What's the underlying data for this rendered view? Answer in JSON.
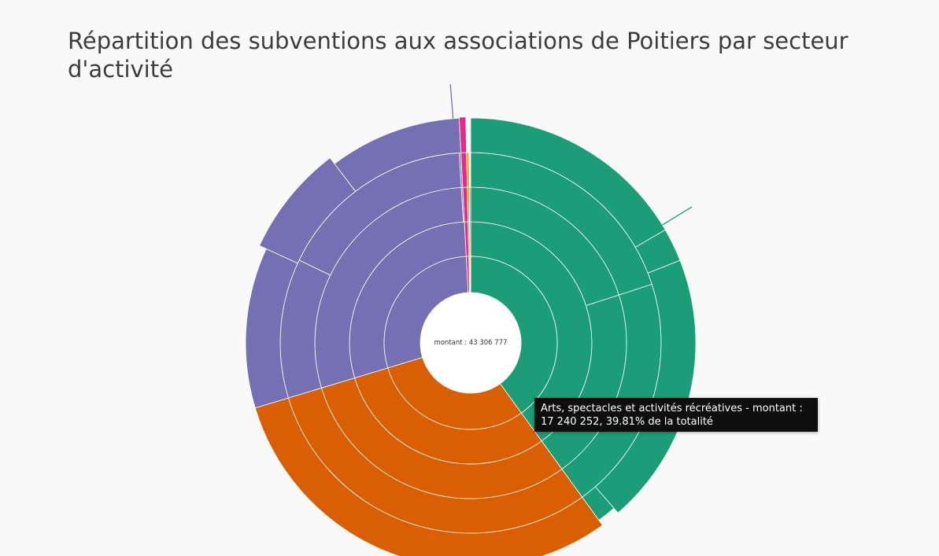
{
  "title": "Répartition des subventions aux associations de Poitiers par secteur d'activité",
  "chart_data": {
    "type": "sunburst",
    "center_label": "montant : 43 306 777",
    "total": 43306777,
    "depth_levels": 5,
    "colors": {
      "arts": "#1b9e77",
      "orange": "#d95f02",
      "purple": "#7570b3",
      "pink": "#e7298a",
      "yellow": "#e6ab02",
      "olive": "#66a61e"
    },
    "sectors": [
      {
        "key": "arts",
        "name": "Arts, spectacles et activités récréatives",
        "value": 17240252,
        "color": "arts",
        "tail": true,
        "levels": [
          [
            1
          ],
          [
            0.5,
            0.5
          ],
          [
            0.5,
            0.5
          ],
          [
            0.415,
            0.06,
            0.49,
            0.035
          ]
        ],
        "outer_extents": [
          1,
          1,
          1,
          0.82
        ]
      },
      {
        "value": 13036000,
        "color": "orange",
        "levels": [
          [
            1
          ],
          [
            1
          ],
          [
            1
          ],
          [
            1
          ]
        ],
        "outer_extents": [
          1
        ]
      },
      {
        "value": 12425000,
        "color": "purple",
        "tail": true,
        "levels": [
          [
            1
          ],
          [
            0.995,
            0.005
          ],
          [
            0.41,
            0.585,
            0.005
          ],
          [
            0.4,
            0.27,
            0.33
          ]
        ],
        "outer_extents": [
          1,
          1.215,
          1
        ]
      },
      {
        "value": 200000,
        "color": "pink",
        "levels": [
          [
            1
          ],
          [
            1
          ],
          [
            1
          ],
          [
            1
          ]
        ],
        "outer_extents": [
          1.03
        ]
      },
      {
        "value": 90000,
        "color": "yellow",
        "levels": [
          [
            1
          ],
          [
            1
          ],
          [
            1
          ]
        ],
        "outer_extents": [
          1
        ]
      },
      {
        "value": 60000,
        "color": "olive",
        "levels": [
          [
            1
          ],
          [
            1
          ]
        ],
        "outer_extents": [
          1
        ]
      }
    ]
  },
  "tooltip": {
    "line1": "Arts, spectacles et activités récréatives - montant :",
    "line2": "17 240 252, 39.81% de la totalité"
  }
}
